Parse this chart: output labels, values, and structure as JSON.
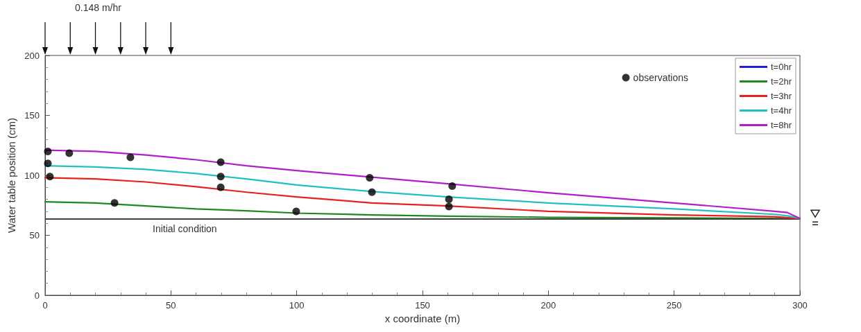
{
  "chart_data": {
    "type": "line",
    "xlabel": "x coordinate (m)",
    "ylabel": "Water table position (cm)",
    "xlim": [
      0,
      300
    ],
    "xticks": [
      0,
      50,
      100,
      150,
      200,
      250,
      300
    ],
    "ylim": [
      0,
      200
    ],
    "yticks": [
      0,
      50,
      100,
      150,
      200
    ],
    "grid": false,
    "legend": "top right",
    "marker": "none",
    "line_style": "solid",
    "annotations": [
      "0.148 m/hr"
    ],
    "ref_lines": [
      {
        "axis": "y",
        "value": 64,
        "label": "Initial condition",
        "color": "#404040"
      }
    ],
    "series": [
      {
        "name": "t=0hr",
        "color": "#1f1fe0"
      },
      {
        "name": "t=2hr",
        "color": "#1e8a1e",
        "x": [
          0,
          20,
          40,
          60,
          80,
          100,
          130,
          160,
          200,
          250,
          300
        ],
        "values": [
          78,
          77,
          74.5,
          72,
          70.5,
          68.5,
          67,
          66,
          65,
          64.5,
          64
        ]
      },
      {
        "name": "t=3hr",
        "color": "#e82020",
        "x": [
          0,
          20,
          40,
          60,
          80,
          100,
          130,
          160,
          200,
          250,
          290,
          300
        ],
        "values": [
          98,
          97,
          94.5,
          90.5,
          86,
          82,
          77,
          74.5,
          70,
          67,
          65.5,
          64
        ]
      },
      {
        "name": "t=4hr",
        "color": "#20c0c0",
        "x": [
          0,
          20,
          40,
          60,
          80,
          100,
          130,
          160,
          200,
          250,
          290,
          296,
          300
        ],
        "values": [
          108,
          107,
          105,
          101.5,
          97,
          92,
          86.5,
          82,
          77,
          72,
          67.5,
          66,
          64
        ]
      },
      {
        "name": "t=8hr",
        "color": "#b020c8",
        "x": [
          0,
          20,
          40,
          60,
          80,
          100,
          130,
          160,
          200,
          250,
          290,
          295,
          300
        ],
        "values": [
          121,
          120,
          117,
          113,
          108,
          104,
          98.5,
          93,
          85.5,
          77,
          70,
          69,
          64
        ]
      },
      {
        "name": "observations",
        "type": "scatter",
        "marker": "circle",
        "color": "#000000",
        "x": [
          1.1,
          1.1,
          1.9,
          9.6,
          27.6,
          33.9,
          69.8,
          69.8,
          69.8,
          99.8,
          129,
          129.9,
          160.5,
          160.5,
          161.8
        ],
        "values": [
          120,
          110,
          99,
          118.5,
          77,
          115,
          111,
          99,
          90,
          70,
          98,
          86,
          80,
          74,
          91
        ]
      }
    ]
  }
}
